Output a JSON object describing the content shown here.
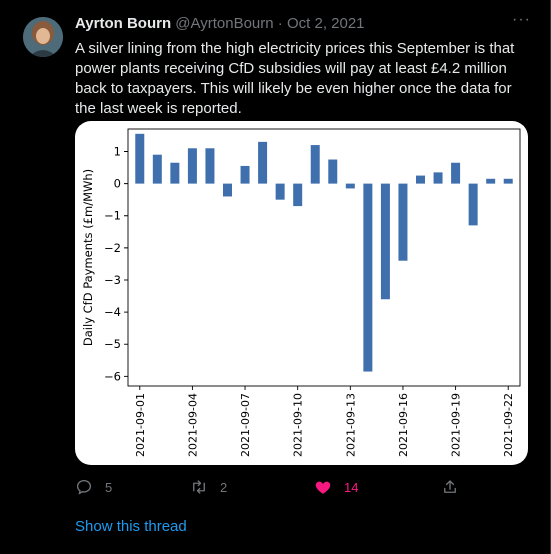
{
  "tweet": {
    "author_name": "Ayrton Bourn",
    "handle": "@AyrtonBourn",
    "separator": "·",
    "date": "Oct 2, 2021",
    "more_label": "···",
    "text": "A silver lining from the high electricity prices this September is that power plants receiving CfD subsidies will pay at least £4.2 million back to taxpayers. This will likely be even higher once the data for the last week is reported."
  },
  "actions": {
    "reply_count": "5",
    "retweet_count": "2",
    "like_count": "14",
    "like_color": "#f91880"
  },
  "show_thread": "Show this thread",
  "chart_data": {
    "type": "bar",
    "ylabel": "Daily CfD Payments (£m/MWh)",
    "xlabel": "",
    "bar_color": "#3f70ad",
    "ylim": [
      -6.3,
      1.7
    ],
    "yticks": [
      1,
      0,
      -1,
      -2,
      -3,
      -4,
      -5,
      -6
    ],
    "ytick_labels": [
      "1",
      "0",
      "−1",
      "−2",
      "−3",
      "−4",
      "−5",
      "−6"
    ],
    "xtick_labels": [
      "2021-09-01",
      "2021-09-04",
      "2021-09-07",
      "2021-09-10",
      "2021-09-13",
      "2021-09-16",
      "2021-09-19",
      "2021-09-22"
    ],
    "xtick_every": 3,
    "categories": [
      "2021-09-01",
      "2021-09-02",
      "2021-09-03",
      "2021-09-04",
      "2021-09-05",
      "2021-09-06",
      "2021-09-07",
      "2021-09-08",
      "2021-09-09",
      "2021-09-10",
      "2021-09-11",
      "2021-09-12",
      "2021-09-13",
      "2021-09-14",
      "2021-09-15",
      "2021-09-16",
      "2021-09-17",
      "2021-09-18",
      "2021-09-19",
      "2021-09-20",
      "2021-09-21",
      "2021-09-22"
    ],
    "values": [
      1.55,
      0.9,
      0.65,
      1.1,
      1.1,
      -0.4,
      0.55,
      1.3,
      -0.5,
      -0.7,
      1.2,
      0.75,
      -0.15,
      -5.85,
      -3.6,
      -2.4,
      0.25,
      0.35,
      0.65,
      -1.3,
      0.15,
      0.15
    ]
  }
}
